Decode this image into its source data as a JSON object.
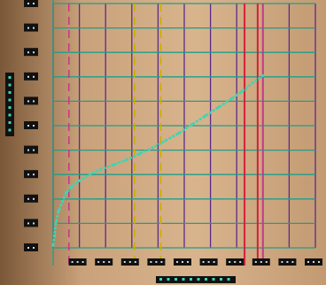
{
  "colors": {
    "background_light": "#c9a17a",
    "background_dark": "#7a5738",
    "grid_vertical": "#5a2a8c",
    "grid_horizontal": "#1f9e8a",
    "curve": "#3ad6b4",
    "marker_yellow": "#c9b000",
    "marker_red": "#d2213c",
    "marker_pink": "#c43a8a",
    "tick_box": "#111111",
    "tick_dot": "#d8d8d8"
  },
  "chart_data": {
    "type": "line",
    "title": "",
    "xlabel": "",
    "ylabel": "",
    "xlim": [
      0,
      10
    ],
    "ylim": [
      0,
      10
    ],
    "grid": true,
    "x_tick_count": 10,
    "y_tick_count": 10,
    "series": [
      {
        "x": [
          0.0,
          0.05,
          0.1,
          0.2,
          0.35,
          0.5,
          0.7,
          1.0,
          1.4,
          1.8,
          2.3,
          2.8,
          3.3,
          3.8,
          4.3,
          4.8,
          5.3,
          5.8,
          6.3,
          6.8,
          7.2,
          7.6,
          8.0
        ],
        "y": [
          0.1,
          0.5,
          1.0,
          1.5,
          1.9,
          2.25,
          2.5,
          2.75,
          3.0,
          3.2,
          3.4,
          3.6,
          3.85,
          4.1,
          4.4,
          4.7,
          5.05,
          5.4,
          5.75,
          6.1,
          6.4,
          6.75,
          7.05
        ]
      }
    ],
    "vertical_markers": [
      {
        "x": 0.6,
        "style": "dashed",
        "color_key": "marker_pink"
      },
      {
        "x": 3.1,
        "style": "dashed",
        "color_key": "marker_yellow"
      },
      {
        "x": 4.1,
        "style": "dashed",
        "color_key": "marker_yellow"
      },
      {
        "x": 7.3,
        "style": "solid",
        "color_key": "marker_red"
      },
      {
        "x": 7.8,
        "style": "solid",
        "color_key": "marker_red"
      },
      {
        "x": 8.0,
        "style": "solid",
        "color_key": "marker_pink"
      }
    ]
  }
}
